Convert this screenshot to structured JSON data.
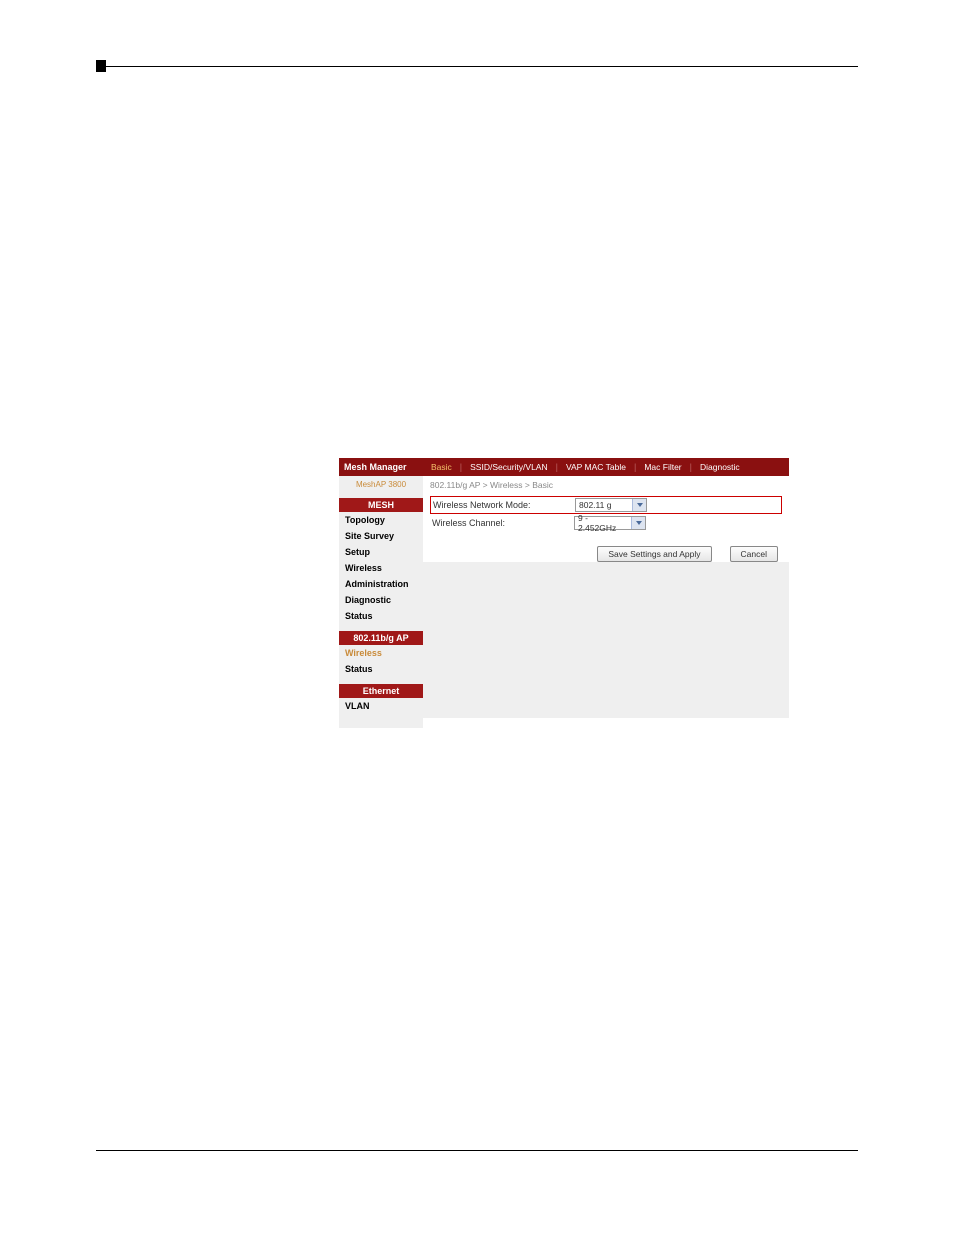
{
  "brand": "Mesh Manager",
  "product": "MeshAP 3800",
  "sections": {
    "mesh": {
      "header": "MESH",
      "items": [
        "Topology",
        "Site Survey",
        "Setup",
        "Wireless",
        "Administration",
        "Diagnostic",
        "Status"
      ]
    },
    "ap": {
      "header": "802.11b/g AP",
      "items": [
        "Wireless",
        "Status"
      ],
      "activeIndex": 0
    },
    "eth": {
      "header": "Ethernet",
      "items": [
        "VLAN"
      ]
    }
  },
  "tabs": {
    "items": [
      "Basic",
      "SSID/Security/VLAN",
      "VAP MAC Table",
      "Mac Filter",
      "Diagnostic"
    ],
    "activeIndex": 0
  },
  "breadcrumb": "802.11b/g AP > Wireless > Basic",
  "form": {
    "mode": {
      "label": "Wireless Network Mode:",
      "value": "802.11 g"
    },
    "channel": {
      "label": "Wireless Channel:",
      "value": "9 - 2.452GHz"
    }
  },
  "buttons": {
    "save": "Save Settings and Apply",
    "cancel": "Cancel"
  },
  "colors": {
    "brand_bg": "#8a1010",
    "section_bg": "#a01818",
    "gold": "#c98b3a",
    "highlight_border": "#cc0000"
  }
}
